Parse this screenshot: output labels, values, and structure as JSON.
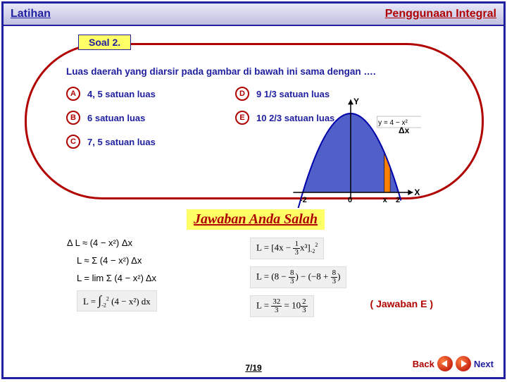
{
  "header": {
    "left": "Latihan",
    "right": "Penggunaan Integral"
  },
  "soal_tab": "Soal 2.",
  "question": "Luas daerah yang diarsir pada gambar di bawah ini sama dengan ….",
  "options": {
    "A": "4, 5 satuan luas",
    "B": "6 satuan luas",
    "C": "7, 5 satuan luas",
    "D": "9 1/3 satuan luas",
    "E": "10 2/3 satuan luas"
  },
  "chart": {
    "type": "area",
    "equation": "y = 4 − x²",
    "x_range": [
      -2,
      2
    ],
    "x_ticks": [
      -2,
      0,
      2
    ],
    "y_label": "Y",
    "x_label": "X",
    "delta_label": "Δx",
    "highlight_x": 1.4,
    "axis_color": "#000000",
    "curve_color": "#0000aa",
    "fill_color": "#5060c8",
    "strip_color": "#ff8000",
    "background_color": "#ffffff"
  },
  "feedback": "Jawaban Anda Salah",
  "working": {
    "l1": "Δ L ≈ (4 − x²) Δx",
    "l2": "L ≈ Σ (4 − x²) Δx",
    "l3": "L = lim Σ (4 − x²) Δx",
    "eq_int_label": "L = ∫(4 − x²) dx  from −2 to 2",
    "eq_anti_label": "L = [4x − ⅓x³] from −2 to 2",
    "eq_eval_label": "L = (8 − 8/3) − (−8 + 8/3)",
    "eq_result_label": "L = 32/3 = 10⅔"
  },
  "answer_note": "( Jawaban E )",
  "nav": {
    "back": "Back",
    "next": "Next"
  },
  "page": "7/19",
  "colors": {
    "primary": "#2020a0",
    "accent": "#b00000",
    "highlight": "#ffff66"
  }
}
